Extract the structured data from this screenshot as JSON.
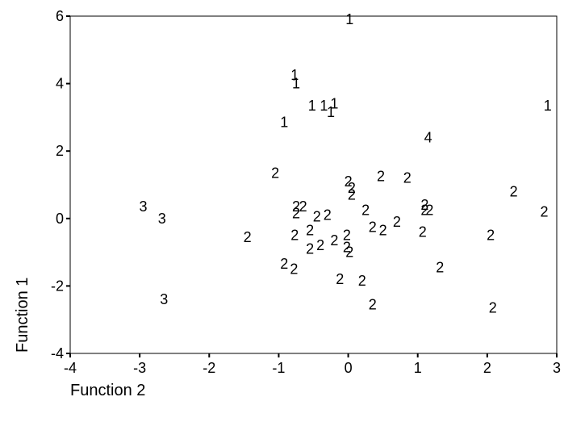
{
  "chart_data": {
    "type": "scatter",
    "title": "",
    "xlabel": "Function 2",
    "ylabel": "Function 1",
    "xlim": [
      -4,
      3
    ],
    "ylim": [
      -4,
      6
    ],
    "xticks": [
      -4,
      -3,
      -2,
      -1,
      0,
      1,
      2,
      3
    ],
    "yticks": [
      -4,
      -2,
      0,
      2,
      4,
      6
    ],
    "xtick_labels": [
      "-4",
      "-3",
      "-2",
      "-1",
      "0",
      "1",
      "2",
      "3"
    ],
    "ytick_labels": [
      "-4",
      "-2",
      "0",
      "2",
      "4",
      "6"
    ],
    "grid": false,
    "marker": "group number",
    "points": [
      {
        "x": 0.02,
        "y": 5.9,
        "label": "1"
      },
      {
        "x": -0.77,
        "y": 4.25,
        "label": "1"
      },
      {
        "x": -0.75,
        "y": 4.0,
        "label": "1"
      },
      {
        "x": -0.52,
        "y": 3.35,
        "label": "1"
      },
      {
        "x": -0.35,
        "y": 3.35,
        "label": "1"
      },
      {
        "x": -0.2,
        "y": 3.4,
        "label": "1"
      },
      {
        "x": -0.25,
        "y": 3.15,
        "label": "1"
      },
      {
        "x": -0.92,
        "y": 2.85,
        "label": "1"
      },
      {
        "x": 2.87,
        "y": 3.35,
        "label": "1"
      },
      {
        "x": 1.15,
        "y": 2.4,
        "label": "4"
      },
      {
        "x": -1.05,
        "y": 1.35,
        "label": "2"
      },
      {
        "x": 0.0,
        "y": 1.1,
        "label": "2"
      },
      {
        "x": 0.47,
        "y": 1.25,
        "label": "2"
      },
      {
        "x": 0.85,
        "y": 1.2,
        "label": "2"
      },
      {
        "x": 0.05,
        "y": 0.9,
        "label": "2"
      },
      {
        "x": 0.05,
        "y": 0.7,
        "label": "2"
      },
      {
        "x": 2.38,
        "y": 0.8,
        "label": "2"
      },
      {
        "x": -0.75,
        "y": 0.35,
        "label": "2"
      },
      {
        "x": -0.65,
        "y": 0.35,
        "label": "2"
      },
      {
        "x": -0.75,
        "y": 0.15,
        "label": "2"
      },
      {
        "x": -0.45,
        "y": 0.05,
        "label": "2"
      },
      {
        "x": -0.3,
        "y": 0.1,
        "label": "2"
      },
      {
        "x": 0.25,
        "y": 0.25,
        "label": "2"
      },
      {
        "x": 1.1,
        "y": 0.4,
        "label": "2"
      },
      {
        "x": 1.1,
        "y": 0.25,
        "label": "2"
      },
      {
        "x": 1.17,
        "y": 0.25,
        "label": "2"
      },
      {
        "x": 2.82,
        "y": 0.2,
        "label": "2"
      },
      {
        "x": 0.7,
        "y": -0.1,
        "label": "2"
      },
      {
        "x": 0.35,
        "y": -0.25,
        "label": "2"
      },
      {
        "x": 0.5,
        "y": -0.35,
        "label": "2"
      },
      {
        "x": -0.55,
        "y": -0.35,
        "label": "2"
      },
      {
        "x": -0.77,
        "y": -0.5,
        "label": "2"
      },
      {
        "x": -1.45,
        "y": -0.55,
        "label": "2"
      },
      {
        "x": 1.07,
        "y": -0.4,
        "label": "2"
      },
      {
        "x": 2.05,
        "y": -0.5,
        "label": "2"
      },
      {
        "x": -0.02,
        "y": -0.5,
        "label": "2"
      },
      {
        "x": -0.2,
        "y": -0.65,
        "label": "2"
      },
      {
        "x": -0.4,
        "y": -0.8,
        "label": "2"
      },
      {
        "x": -0.55,
        "y": -0.9,
        "label": "2"
      },
      {
        "x": -0.02,
        "y": -0.85,
        "label": "2"
      },
      {
        "x": 0.02,
        "y": -1.0,
        "label": "2"
      },
      {
        "x": -0.92,
        "y": -1.35,
        "label": "2"
      },
      {
        "x": -0.78,
        "y": -1.5,
        "label": "2"
      },
      {
        "x": 1.32,
        "y": -1.45,
        "label": "2"
      },
      {
        "x": -0.12,
        "y": -1.8,
        "label": "2"
      },
      {
        "x": 0.2,
        "y": -1.85,
        "label": "2"
      },
      {
        "x": 0.35,
        "y": -2.55,
        "label": "2"
      },
      {
        "x": 2.08,
        "y": -2.65,
        "label": "2"
      },
      {
        "x": -2.95,
        "y": 0.35,
        "label": "3"
      },
      {
        "x": -2.68,
        "y": 0.0,
        "label": "3"
      },
      {
        "x": -2.65,
        "y": -2.4,
        "label": "3"
      }
    ]
  }
}
